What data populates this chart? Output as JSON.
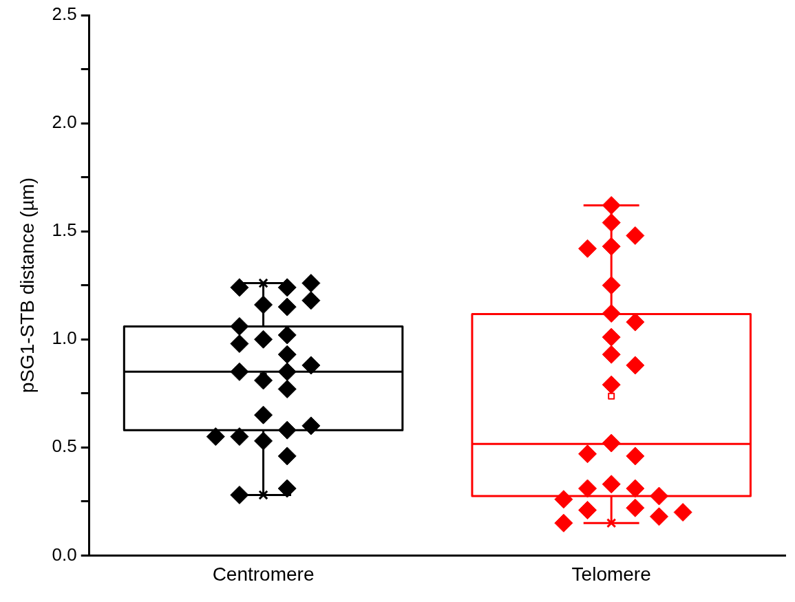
{
  "chart_data": {
    "type": "box",
    "ylabel": "pSG1-STB distance (µm)",
    "categories": [
      "Centromere",
      "Telomere"
    ],
    "colors": [
      "#000000",
      "#ff0000"
    ],
    "boxes": [
      {
        "low": 0.28,
        "q1": 0.58,
        "median": 0.85,
        "q3": 1.06,
        "high": 1.26,
        "mean": 0.83
      },
      {
        "low": 0.15,
        "q1": 0.275,
        "median": 0.516,
        "q3": 1.117,
        "high": 1.62,
        "mean": 0.737
      }
    ],
    "series": [
      {
        "type": "scatter",
        "marker": "cross",
        "color": "#000000",
        "x": [
          "Centromere",
          "Centromere"
        ],
        "values": [
          1.26,
          0.28
        ]
      },
      {
        "type": "scatter",
        "marker": "cross",
        "color": "#ff0000",
        "x": [
          "Telomere"
        ],
        "values": [
          0.15
        ]
      },
      {
        "type": "scatter",
        "marker": "diamond",
        "color": "#000000",
        "x": [
          "Centromere",
          "Centromere",
          "Centromere",
          "Centromere",
          "Centromere",
          "Centromere",
          "Centromere",
          "Centromere",
          "Centromere",
          "Centromere",
          "Centromere",
          "Centromere",
          "Centromere",
          "Centromere",
          "Centromere",
          "Centromere",
          "Centromere",
          "Centromere",
          "Centromere",
          "Centromere",
          "Centromere",
          "Centromere",
          "Centromere",
          "Centromere",
          "Centromere"
        ],
        "values": [
          1.24,
          1.0,
          0.81,
          0.53,
          1.02,
          0.93,
          0.58,
          1.16,
          0.85,
          0.77,
          0.55,
          0.31,
          1.24,
          1.06,
          0.85,
          0.65,
          0.6,
          0.28,
          1.26,
          1.18,
          0.88,
          0.55,
          1.15,
          0.98,
          0.46
        ]
      },
      {
        "type": "scatter",
        "marker": "diamond",
        "color": "#ff0000",
        "x": [
          "Telomere",
          "Telomere",
          "Telomere",
          "Telomere",
          "Telomere",
          "Telomere",
          "Telomere",
          "Telomere",
          "Telomere",
          "Telomere",
          "Telomere",
          "Telomere",
          "Telomere",
          "Telomere",
          "Telomere",
          "Telomere",
          "Telomere",
          "Telomere",
          "Telomere",
          "Telomere",
          "Telomere",
          "Telomere",
          "Telomere",
          "Telomere",
          "Telomere"
        ],
        "values": [
          1.62,
          1.54,
          1.48,
          1.43,
          1.42,
          1.25,
          1.12,
          1.08,
          1.01,
          0.93,
          0.88,
          0.79,
          0.52,
          0.46,
          0.47,
          0.33,
          0.31,
          0.31,
          0.275,
          0.26,
          0.22,
          0.21,
          0.2,
          0.18,
          0.15
        ]
      }
    ],
    "ylim": [
      0,
      2.5
    ],
    "yticks": [
      {
        "value": 0,
        "label": "0.0"
      },
      {
        "value": 0.25,
        "label": null
      },
      0.5,
      {
        "value": 0.75,
        "label": null
      },
      {
        "value": 1,
        "label": "1.0"
      },
      {
        "value": 1.25,
        "label": null
      },
      1.5,
      {
        "value": 1.75,
        "label": null
      },
      {
        "value": 2,
        "label": "2.0"
      },
      {
        "value": 2.25,
        "label": null
      },
      2.5
    ],
    "grid": false,
    "legend": false
  }
}
